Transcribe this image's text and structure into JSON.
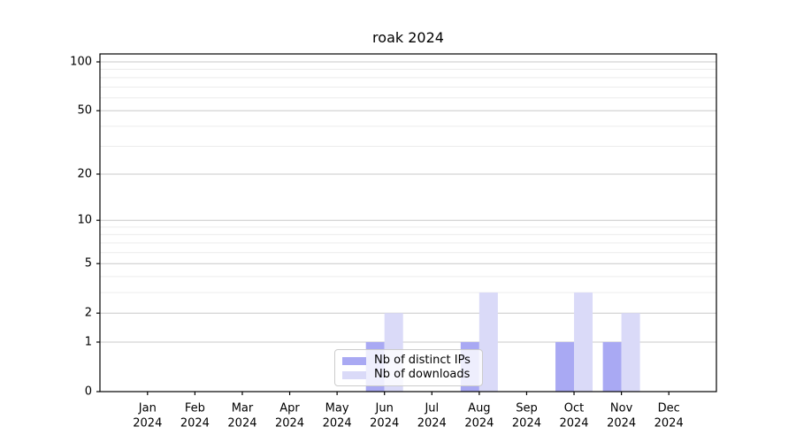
{
  "title": "roak 2024",
  "legend": {
    "items": [
      {
        "label": "Nb of distinct IPs",
        "color": "#a9a9f3"
      },
      {
        "label": "Nb of downloads",
        "color": "#dadaf8"
      }
    ]
  },
  "chart_data": {
    "type": "bar",
    "title": "roak 2024",
    "categories": [
      "Jan",
      "Feb",
      "Mar",
      "Apr",
      "May",
      "Jun",
      "Jul",
      "Aug",
      "Sep",
      "Oct",
      "Nov",
      "Dec"
    ],
    "category_year": "2024",
    "series": [
      {
        "name": "Nb of distinct IPs",
        "color": "#a9a9f3",
        "values": [
          0,
          0,
          0,
          0,
          0,
          1,
          0,
          1,
          0,
          1,
          1,
          0
        ]
      },
      {
        "name": "Nb of downloads",
        "color": "#dadaf8",
        "values": [
          0,
          0,
          0,
          0,
          0,
          2,
          0,
          3,
          0,
          3,
          2,
          0
        ]
      }
    ],
    "xlabel": "",
    "ylabel": "",
    "yscale": "log1p",
    "ylim": [
      0,
      112
    ],
    "y_major_ticks": [
      0,
      1,
      2,
      5,
      10,
      20,
      50,
      100
    ],
    "y_minor_gridlines": [
      3,
      4,
      6,
      7,
      8,
      9,
      30,
      40,
      60,
      70,
      80,
      90
    ],
    "grid": true,
    "legend_position": "inside-bottom-center"
  },
  "colors": {
    "background": "#ffffff",
    "axis": "#000000",
    "tick_text": "#000000",
    "grid_major": "#c8c8c8",
    "grid_minor": "#ececec"
  }
}
